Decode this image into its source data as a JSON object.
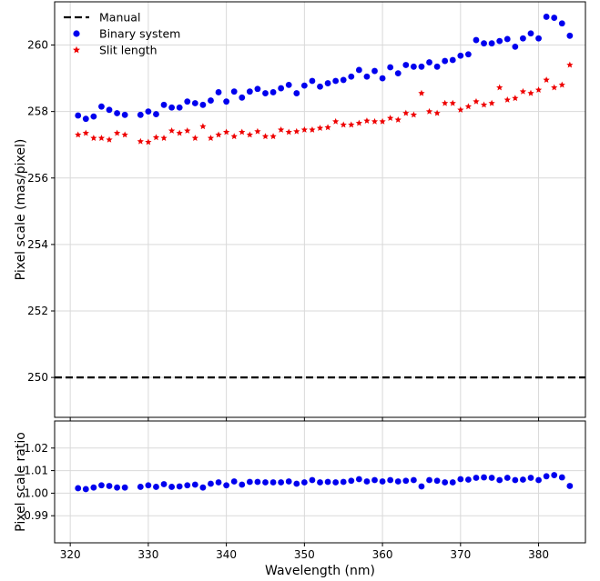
{
  "chart_data": [
    {
      "type": "scatter",
      "title": "",
      "xlabel": "",
      "ylabel": "Pixel scale (mas/pixel)",
      "xlim": [
        318,
        386
      ],
      "ylim": [
        248.8,
        261.3
      ],
      "xticks": [
        320,
        330,
        340,
        350,
        360,
        370,
        380
      ],
      "yticks": [
        250,
        252,
        254,
        256,
        258,
        260
      ],
      "grid": true,
      "legend": "top-left",
      "series": [
        {
          "name": "Manual",
          "kind": "hline",
          "y": 250,
          "color": "#000000",
          "style": "dashed"
        },
        {
          "name": "Binary system",
          "kind": "scatter",
          "marker": "circle",
          "color": "#0000ee",
          "x": [
            321,
            322,
            323,
            324,
            325,
            326,
            327,
            329,
            330,
            331,
            332,
            333,
            334,
            335,
            336,
            337,
            338,
            339,
            340,
            341,
            342,
            343,
            344,
            345,
            346,
            347,
            348,
            349,
            350,
            351,
            352,
            353,
            354,
            355,
            356,
            357,
            358,
            359,
            360,
            361,
            362,
            363,
            364,
            365,
            366,
            367,
            368,
            369,
            370,
            371,
            372,
            373,
            374,
            375,
            376,
            377,
            378,
            379,
            380,
            381,
            382,
            383,
            384
          ],
          "y": [
            257.88,
            257.78,
            257.85,
            258.15,
            258.05,
            257.95,
            257.9,
            257.9,
            258.0,
            257.92,
            258.2,
            258.12,
            258.12,
            258.3,
            258.25,
            258.2,
            258.33,
            258.58,
            258.3,
            258.6,
            258.42,
            258.6,
            258.68,
            258.55,
            258.58,
            258.7,
            258.8,
            258.55,
            258.78,
            258.92,
            258.75,
            258.85,
            258.92,
            258.95,
            259.05,
            259.25,
            259.05,
            259.22,
            259.0,
            259.33,
            259.15,
            259.4,
            259.35,
            259.35,
            259.48,
            259.35,
            259.52,
            259.55,
            259.68,
            259.72,
            260.15,
            260.05,
            260.05,
            260.12,
            260.18,
            259.95,
            260.2,
            260.35,
            260.2,
            260.85,
            260.82,
            260.65,
            260.28
          ]
        },
        {
          "name": "Slit length",
          "kind": "scatter",
          "marker": "star",
          "color": "#ee0000",
          "x": [
            321,
            322,
            323,
            324,
            325,
            326,
            327,
            329,
            330,
            331,
            332,
            333,
            334,
            335,
            336,
            337,
            338,
            339,
            340,
            341,
            342,
            343,
            344,
            345,
            346,
            347,
            348,
            349,
            350,
            351,
            352,
            353,
            354,
            355,
            356,
            357,
            358,
            359,
            360,
            361,
            362,
            363,
            364,
            365,
            366,
            367,
            368,
            369,
            370,
            371,
            372,
            373,
            374,
            375,
            376,
            377,
            378,
            379,
            380,
            381,
            382,
            383,
            384
          ],
          "y": [
            257.3,
            257.35,
            257.2,
            257.2,
            257.15,
            257.35,
            257.3,
            257.1,
            257.08,
            257.22,
            257.2,
            257.42,
            257.35,
            257.42,
            257.2,
            257.55,
            257.2,
            257.3,
            257.38,
            257.25,
            257.38,
            257.3,
            257.4,
            257.25,
            257.25,
            257.45,
            257.38,
            257.4,
            257.45,
            257.45,
            257.5,
            257.52,
            257.7,
            257.6,
            257.6,
            257.65,
            257.72,
            257.7,
            257.7,
            257.8,
            257.75,
            257.95,
            257.9,
            258.55,
            258.0,
            257.95,
            258.25,
            258.25,
            258.05,
            258.15,
            258.3,
            258.2,
            258.25,
            258.72,
            258.35,
            258.4,
            258.6,
            258.55,
            258.65,
            258.95,
            258.72,
            258.8,
            259.4
          ]
        }
      ]
    },
    {
      "type": "scatter",
      "title": "",
      "xlabel": "Wavelength (nm)",
      "ylabel": "Pixel scale ratio",
      "xlim": [
        318,
        386
      ],
      "ylim": [
        0.978,
        1.032
      ],
      "xticks": [
        320,
        330,
        340,
        350,
        360,
        370,
        380
      ],
      "yticks": [
        0.99,
        1.0,
        1.01,
        1.02
      ],
      "ytick_labels": [
        "0.99",
        "1.00",
        "1.01",
        "1.02"
      ],
      "grid": true,
      "series": [
        {
          "name": "",
          "kind": "scatter",
          "marker": "circle",
          "color": "#0000ee",
          "x": [
            321,
            322,
            323,
            324,
            325,
            326,
            327,
            329,
            330,
            331,
            332,
            333,
            334,
            335,
            336,
            337,
            338,
            339,
            340,
            341,
            342,
            343,
            344,
            345,
            346,
            347,
            348,
            349,
            350,
            351,
            352,
            353,
            354,
            355,
            356,
            357,
            358,
            359,
            360,
            361,
            362,
            363,
            364,
            365,
            366,
            367,
            368,
            369,
            370,
            371,
            372,
            373,
            374,
            375,
            376,
            377,
            378,
            379,
            380,
            381,
            382,
            383,
            384
          ],
          "y": [
            1.0022,
            1.0018,
            1.0025,
            1.0035,
            1.0032,
            1.0025,
            1.0025,
            1.0028,
            1.0035,
            1.0028,
            1.004,
            1.0028,
            1.003,
            1.0035,
            1.0038,
            1.0025,
            1.0042,
            1.0048,
            1.0035,
            1.0052,
            1.0038,
            1.005,
            1.005,
            1.0048,
            1.0048,
            1.0048,
            1.0052,
            1.0042,
            1.0048,
            1.0058,
            1.0048,
            1.005,
            1.0048,
            1.005,
            1.0055,
            1.0062,
            1.0052,
            1.0058,
            1.0052,
            1.0058,
            1.0052,
            1.0055,
            1.0058,
            1.003,
            1.0058,
            1.0055,
            1.0048,
            1.0048,
            1.0062,
            1.006,
            1.0068,
            1.007,
            1.0068,
            1.0058,
            1.0068,
            1.0058,
            1.006,
            1.0068,
            1.0058,
            1.0075,
            1.008,
            1.007,
            1.0032
          ]
        }
      ]
    }
  ]
}
